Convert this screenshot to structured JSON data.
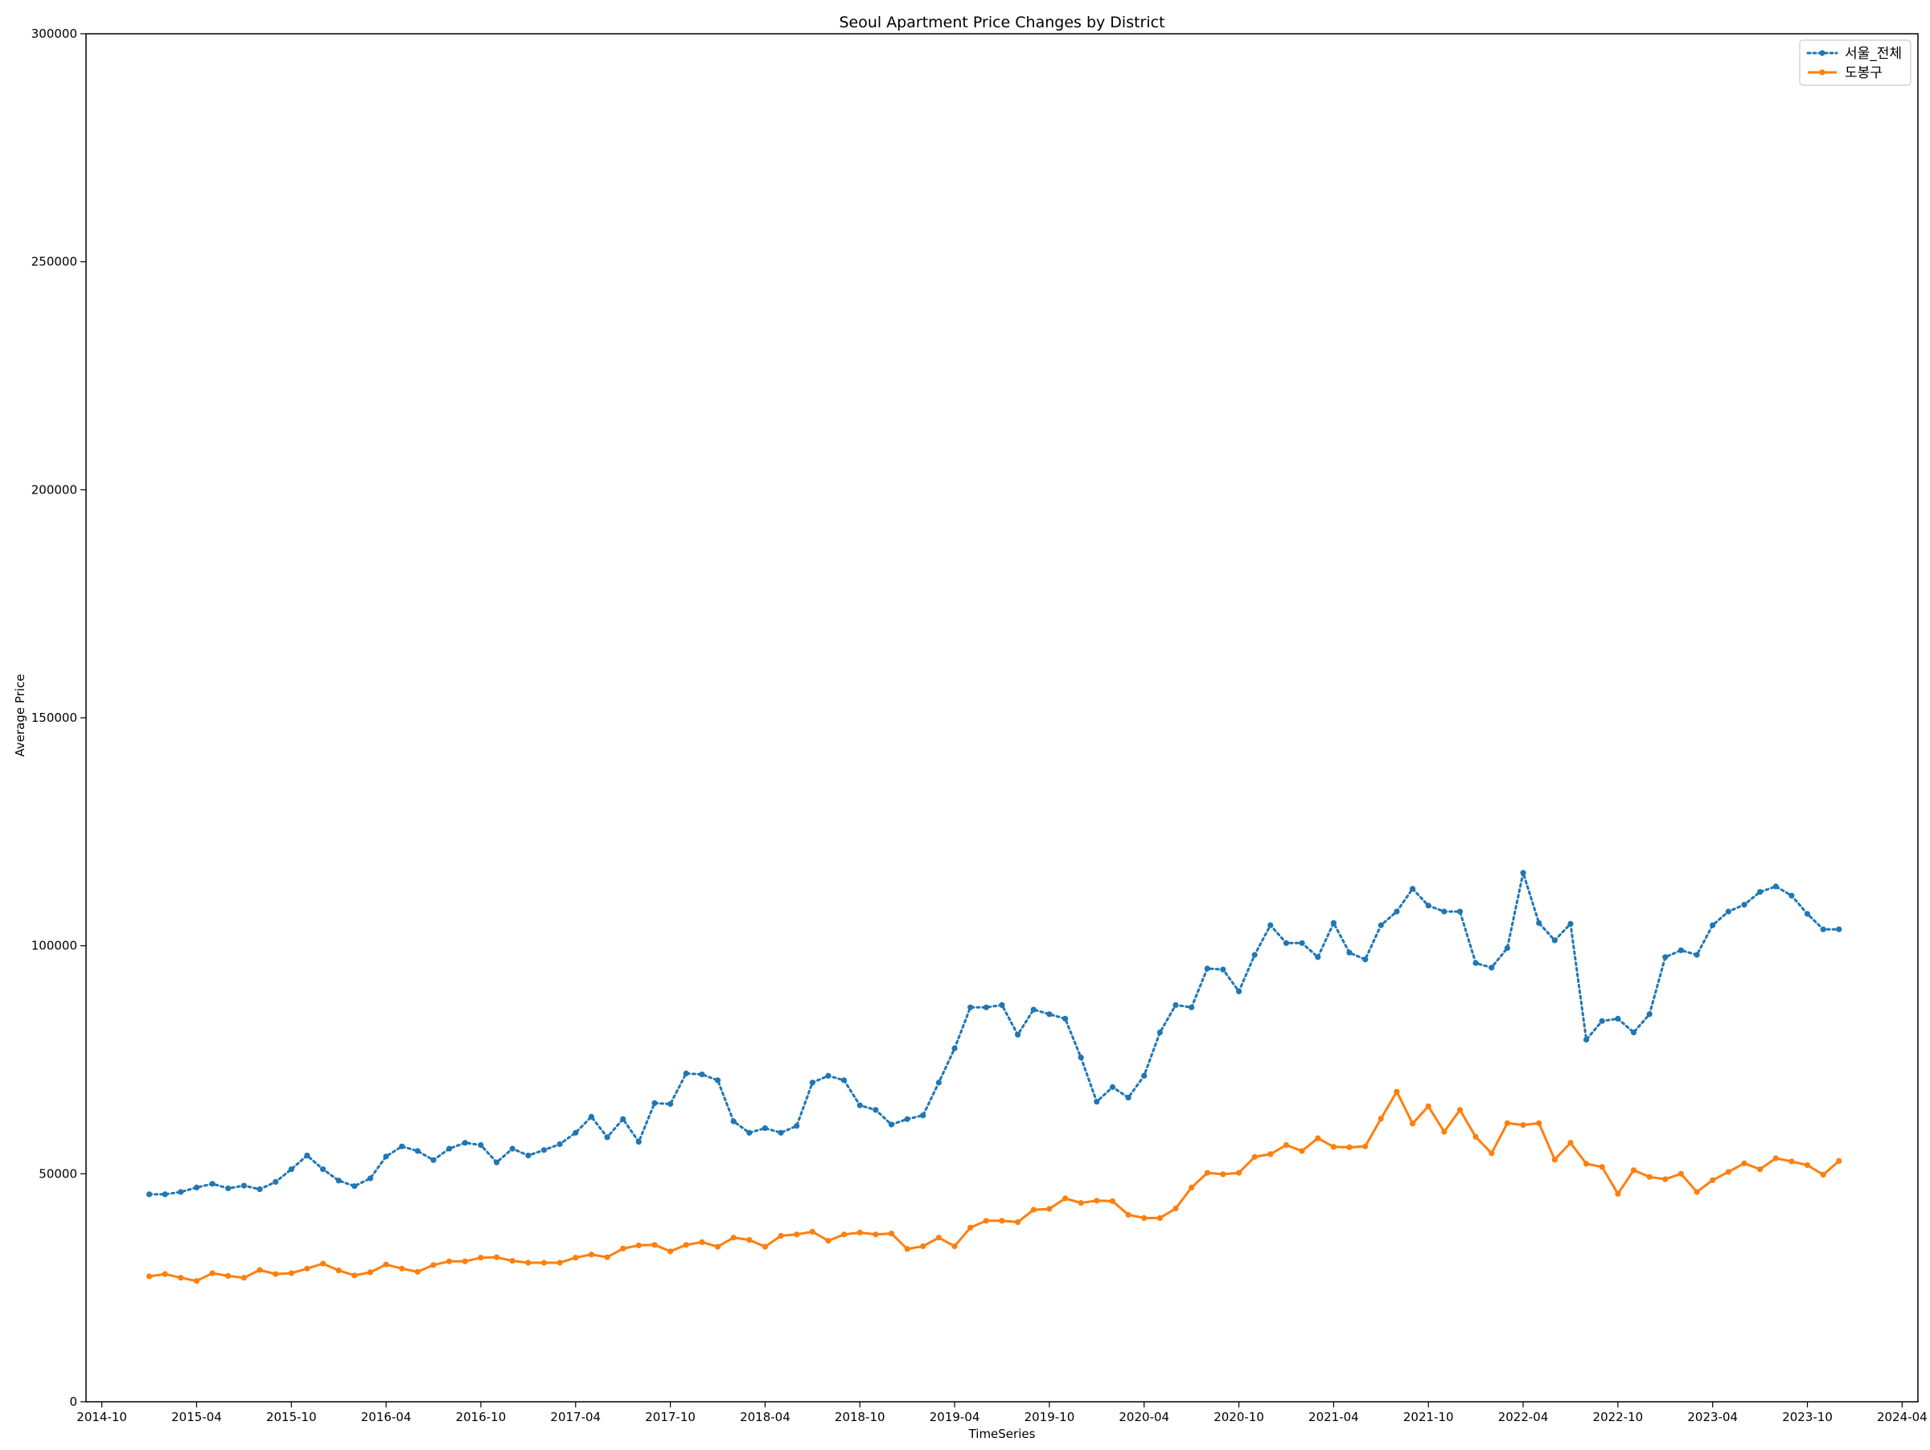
{
  "chart_data": {
    "type": "line",
    "title": "Seoul Apartment Price Changes by District",
    "xlabel": "TimeSeries",
    "ylabel": "Average Price",
    "xlim": [
      "2014-09",
      "2024-05"
    ],
    "ylim": [
      0,
      300000
    ],
    "x_ticks": [
      "2014-10",
      "2015-04",
      "2015-10",
      "2016-04",
      "2016-10",
      "2017-04",
      "2017-10",
      "2018-04",
      "2018-10",
      "2019-04",
      "2019-10",
      "2020-04",
      "2020-10",
      "2021-04",
      "2021-10",
      "2022-04",
      "2022-10",
      "2023-04",
      "2023-10",
      "2024-04"
    ],
    "y_ticks": [
      0,
      50000,
      100000,
      150000,
      200000,
      250000,
      300000
    ],
    "grid": false,
    "legend_position": "top-right",
    "x_start": "2015-01",
    "x_step": "1 month",
    "series": [
      {
        "name": "서울_전체",
        "color": "#1f77b4",
        "style": "dotted",
        "values": [
          45500,
          45500,
          46000,
          47000,
          47800,
          46800,
          47400,
          46600,
          48200,
          51000,
          54000,
          51000,
          48500,
          47300,
          49000,
          53800,
          56000,
          55000,
          53000,
          55500,
          56800,
          56300,
          52500,
          55500,
          54000,
          55200,
          56500,
          59000,
          62500,
          58000,
          62000,
          57000,
          65500,
          65300,
          72000,
          71800,
          70500,
          61500,
          59000,
          60000,
          59000,
          60500,
          70000,
          71500,
          70500,
          65000,
          64000,
          60800,
          62000,
          62800,
          70000,
          77500,
          86500,
          86500,
          87000,
          80500,
          86000,
          85000,
          84000,
          75500,
          65800,
          69000,
          66700,
          71500,
          81000,
          87000,
          86500,
          95000,
          94800,
          90000,
          98000,
          104500,
          100600,
          100600,
          97500,
          105000,
          98500,
          97000,
          104500,
          107500,
          112500,
          108800,
          107500,
          107500,
          96200,
          95200,
          99500,
          116000,
          105000,
          101200,
          104800,
          79400,
          83500,
          84000,
          81000,
          85000,
          97500,
          99000,
          98000,
          104500,
          107500,
          109000,
          111800,
          113000,
          111000,
          107000,
          103600,
          103600
        ]
      },
      {
        "name": "도봉구",
        "color": "#ff7f0e",
        "style": "solid",
        "values": [
          27500,
          28000,
          27200,
          26500,
          28200,
          27600,
          27200,
          28900,
          28000,
          28200,
          29200,
          30300,
          28800,
          27700,
          28400,
          30100,
          29200,
          28500,
          30000,
          30800,
          30800,
          31600,
          31700,
          30900,
          30500,
          30500,
          30500,
          31600,
          32300,
          31700,
          33600,
          34300,
          34400,
          33000,
          34400,
          35000,
          34000,
          36000,
          35500,
          34000,
          36400,
          36700,
          37300,
          35300,
          36700,
          37100,
          36700,
          36900,
          33500,
          34100,
          36000,
          34100,
          38200,
          39700,
          39700,
          39400,
          42100,
          42300,
          44600,
          43600,
          44100,
          44000,
          41000,
          40300,
          40300,
          42400,
          47000,
          50200,
          49900,
          50200,
          53700,
          54300,
          56300,
          55000,
          57800,
          55900,
          55800,
          56000,
          62100,
          68000,
          61000,
          64800,
          59200,
          64000,
          58100,
          54500,
          61100,
          60700,
          61100,
          53100,
          56800,
          52200,
          51500,
          45600,
          50800,
          49300,
          48800,
          50000,
          46000,
          48600,
          50400,
          52300,
          51000,
          53400,
          52700,
          51900,
          49800,
          52800
        ]
      }
    ]
  }
}
